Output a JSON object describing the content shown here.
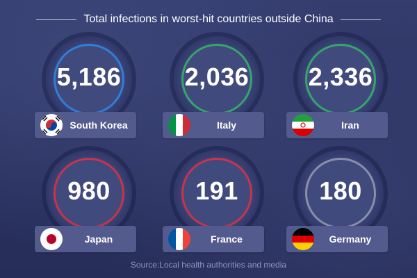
{
  "title": "Total infections in worst-hit countries outside China",
  "source": "Source:Local health authorities and media",
  "chart_data": {
    "type": "table",
    "title": "Total infections in worst-hit countries outside China",
    "categories": [
      "South Korea",
      "Italy",
      "Iran",
      "Japan",
      "France",
      "Germany"
    ],
    "values": [
      5186,
      2036,
      2336,
      980,
      191,
      180
    ],
    "value_labels": [
      "5,186",
      "2,036",
      "2,336",
      "980",
      "191",
      "180"
    ],
    "ring_colors": [
      "#2f7fd8",
      "#35a66a",
      "#35a66a",
      "#c8344a",
      "#c8344a",
      "#8a8fa8"
    ]
  },
  "countries": [
    {
      "name": "South Korea",
      "value_label": "5,186",
      "flag": "south-korea-flag",
      "ring_color": "#2f7fd8"
    },
    {
      "name": "Italy",
      "value_label": "2,036",
      "flag": "italy-flag",
      "ring_color": "#35a66a"
    },
    {
      "name": "Iran",
      "value_label": "2,336",
      "flag": "iran-flag",
      "ring_color": "#35a66a"
    },
    {
      "name": "Japan",
      "value_label": "980",
      "flag": "japan-flag",
      "ring_color": "#c8344a"
    },
    {
      "name": "France",
      "value_label": "191",
      "flag": "france-flag",
      "ring_color": "#c8344a"
    },
    {
      "name": "Germany",
      "value_label": "180",
      "flag": "germany-flag",
      "ring_color": "#8a8fa8"
    }
  ]
}
